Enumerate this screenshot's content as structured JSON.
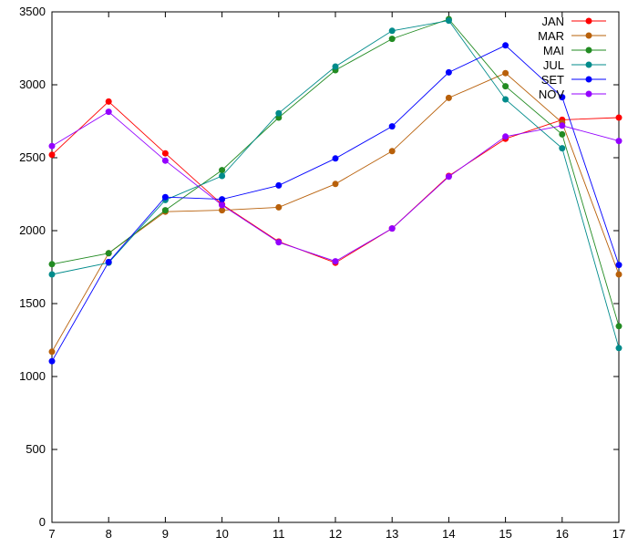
{
  "chart_data": {
    "type": "line",
    "title": "",
    "xlabel": "",
    "ylabel": "",
    "x": [
      7,
      8,
      9,
      10,
      11,
      12,
      13,
      14,
      15,
      16,
      17
    ],
    "xlim": [
      7,
      17
    ],
    "ylim": [
      0,
      3500
    ],
    "xticks": [
      7,
      8,
      9,
      10,
      11,
      12,
      13,
      14,
      15,
      16,
      17
    ],
    "yticks": [
      0,
      500,
      1000,
      1500,
      2000,
      2500,
      3000,
      3500
    ],
    "grid": false,
    "legend_position": "top-right",
    "series": [
      {
        "name": "JAN",
        "color": "#ff0000",
        "values": [
          2520,
          2885,
          2530,
          2180,
          1925,
          1780,
          2015,
          2375,
          2630,
          2760,
          2775
        ]
      },
      {
        "name": "MAR",
        "color": "#b8600a",
        "values": [
          1170,
          1845,
          2130,
          2140,
          2160,
          2320,
          2545,
          2910,
          3080,
          2740,
          1700
        ]
      },
      {
        "name": "MAI",
        "color": "#228b22",
        "values": [
          1770,
          1845,
          2140,
          2415,
          2775,
          3100,
          3315,
          3450,
          2990,
          2660,
          1345
        ]
      },
      {
        "name": "JUL",
        "color": "#008b8b",
        "values": [
          1700,
          1780,
          2210,
          2375,
          2805,
          3125,
          3370,
          3440,
          2900,
          2565,
          1195
        ]
      },
      {
        "name": "SET",
        "color": "#0000ff",
        "values": [
          1105,
          1785,
          2230,
          2215,
          2310,
          2495,
          2715,
          3085,
          3270,
          2915,
          1765
        ]
      },
      {
        "name": "NOV",
        "color": "#9400ff",
        "values": [
          2580,
          2815,
          2480,
          2175,
          1920,
          1790,
          2015,
          2370,
          2645,
          2720,
          2615
        ]
      }
    ]
  }
}
